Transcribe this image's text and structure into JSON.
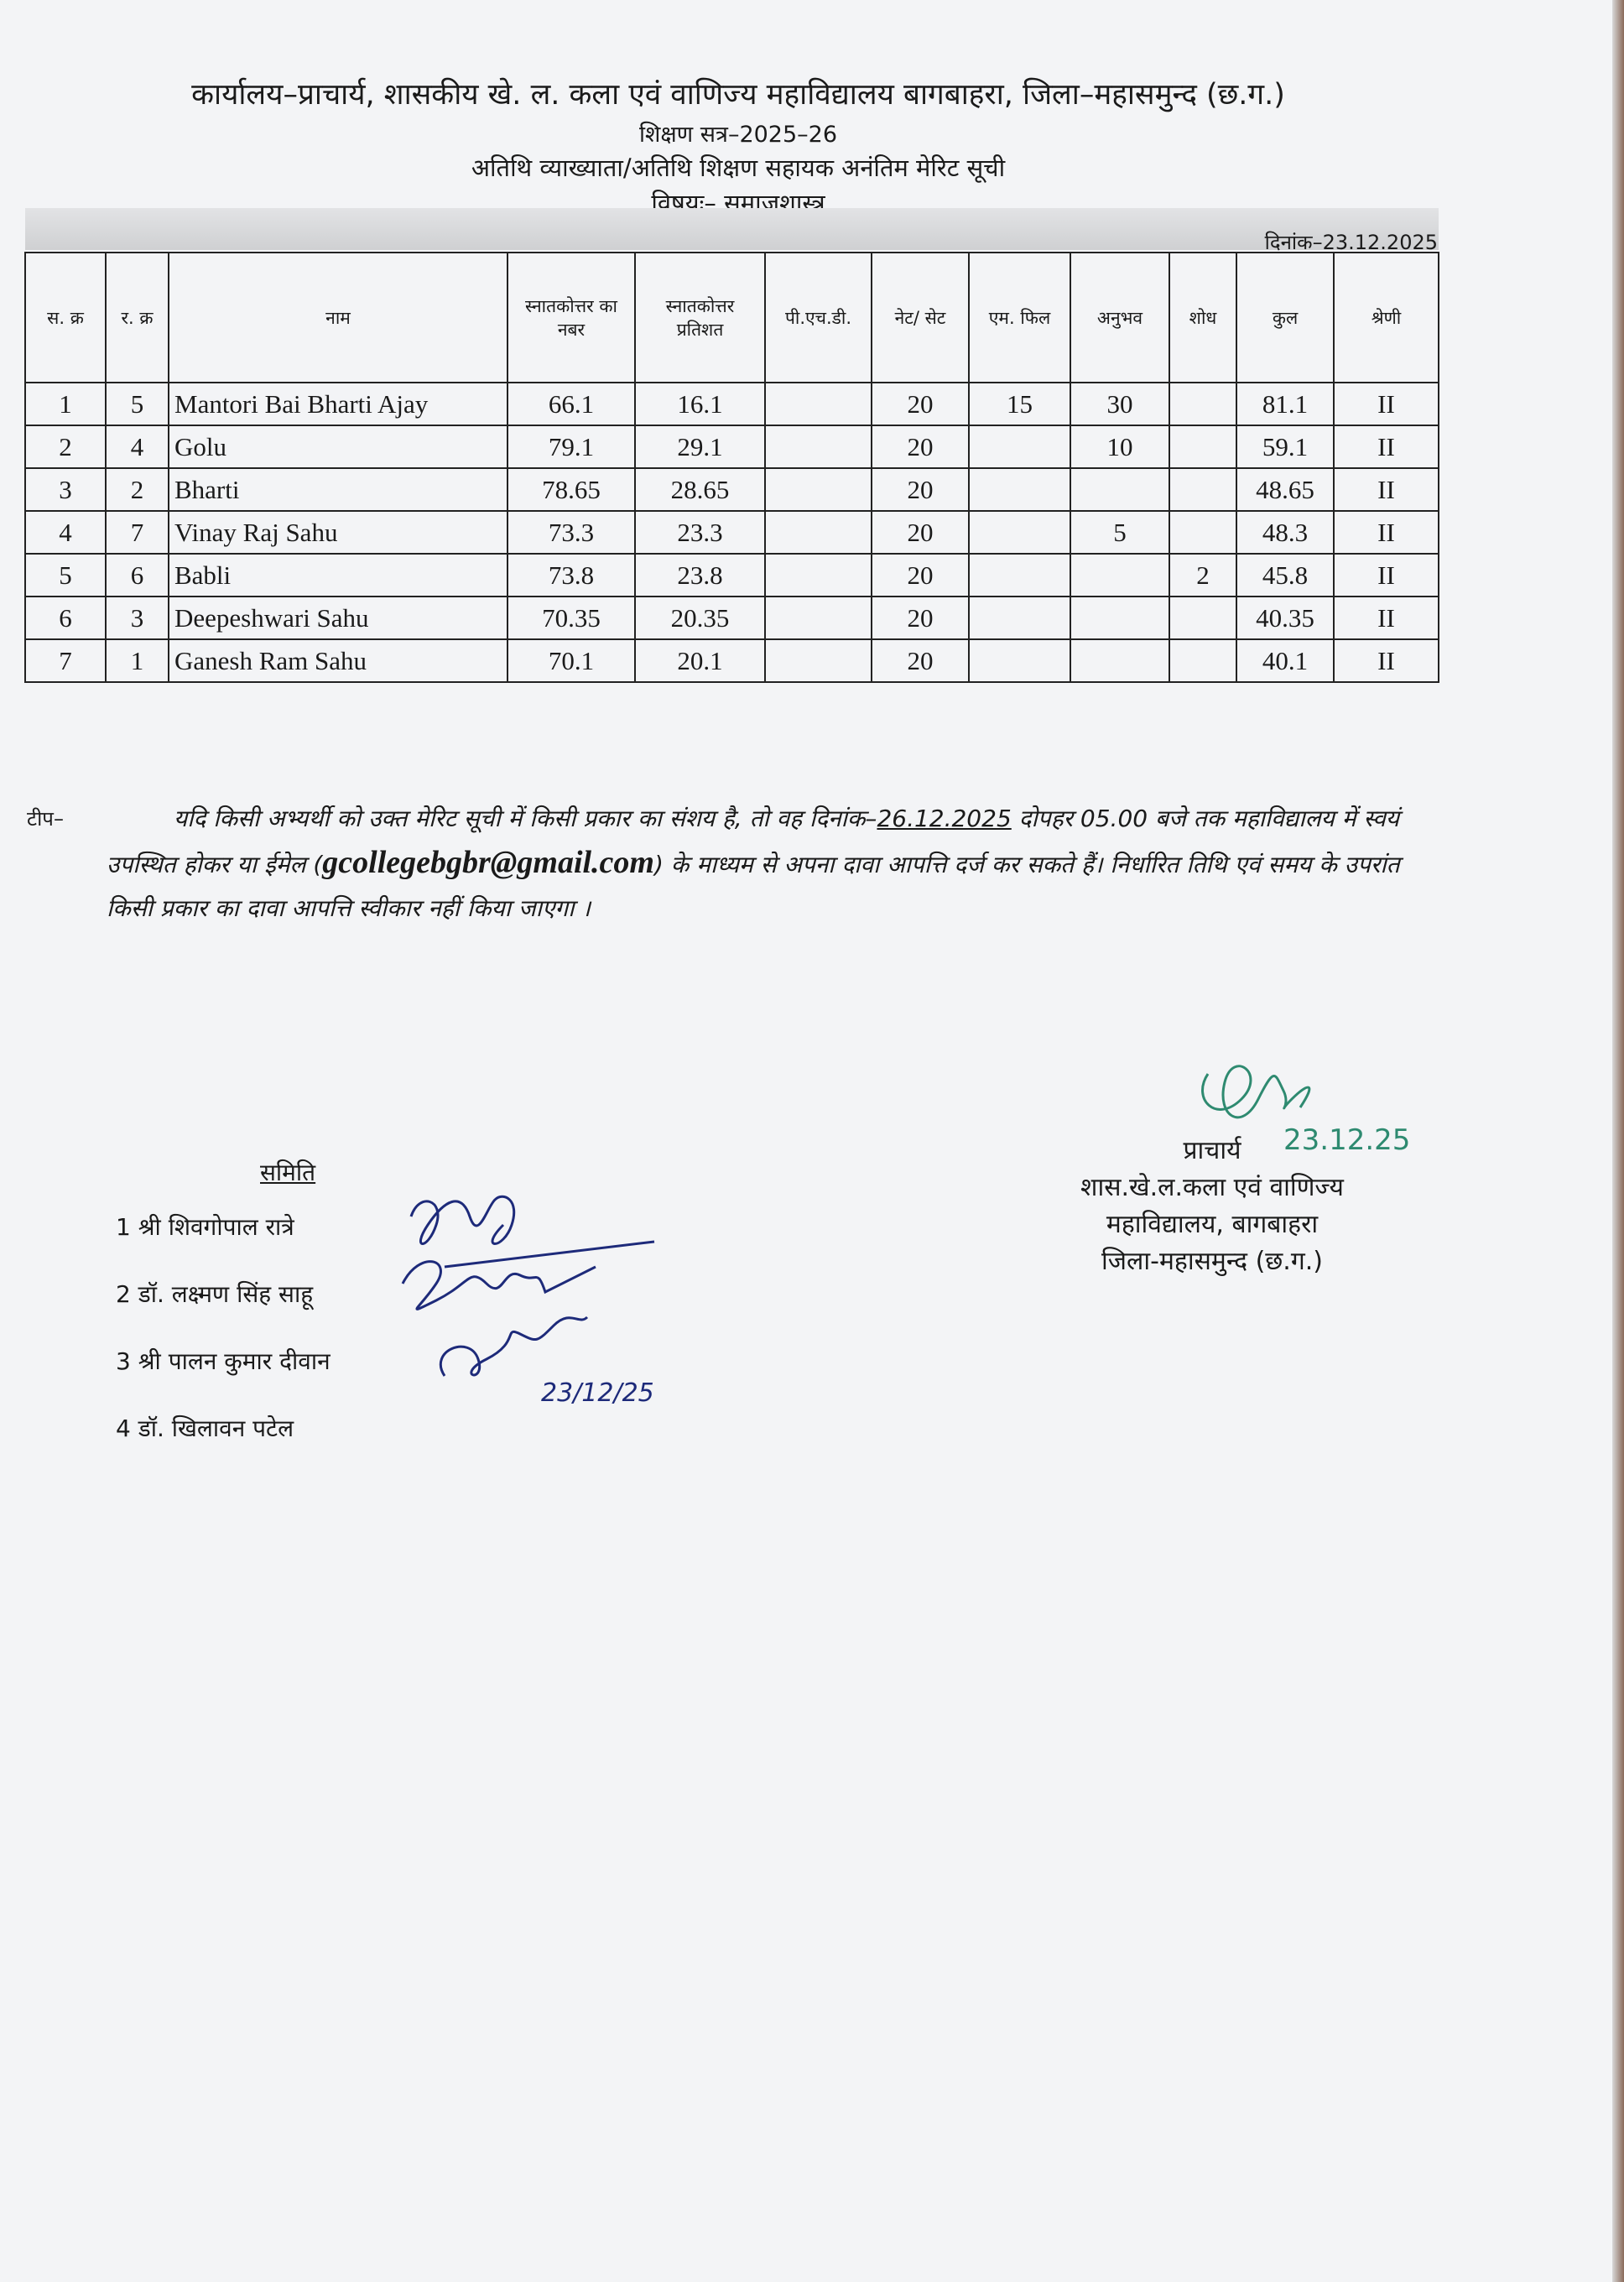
{
  "header": {
    "office": "कार्यालय–प्राचार्य, शासकीय खे. ल. कला एवं वाणिज्य महाविद्यालय बागबाहरा, जिला–महासमुन्द (छ.ग.)",
    "session": "शिक्षण सत्र–2025–26",
    "title": "अतिथि व्याख्याता/अतिथि शिक्षण सहायक अनंतिम मेरिट सूची",
    "subject": "विषयः– समाजशास्त्र",
    "date": "दिनांक–23.12.2025"
  },
  "table": {
    "columns": [
      "स. क्र",
      "र. क्र",
      "नाम",
      "स्नातकोत्तर का नबर",
      "स्नातकोत्तर प्रतिशत",
      "पी.एच.डी.",
      "नेट/ सेट",
      "एम. फिल",
      "अनुभव",
      "शोध",
      "कुल",
      "श्रेणी"
    ],
    "rows": [
      [
        "1",
        "5",
        "Mantori Bai Bharti Ajay",
        "66.1",
        "16.1",
        "",
        "20",
        "15",
        "30",
        "",
        "81.1",
        "II"
      ],
      [
        "2",
        "4",
        "Golu",
        "79.1",
        "29.1",
        "",
        "20",
        "",
        "10",
        "",
        "59.1",
        "II"
      ],
      [
        "3",
        "2",
        "Bharti",
        "78.65",
        "28.65",
        "",
        "20",
        "",
        "",
        "",
        "48.65",
        "II"
      ],
      [
        "4",
        "7",
        "Vinay Raj Sahu",
        "73.3",
        "23.3",
        "",
        "20",
        "",
        "5",
        "",
        "48.3",
        "II"
      ],
      [
        "5",
        "6",
        "Babli",
        "73.8",
        "23.8",
        "",
        "20",
        "",
        "",
        "2",
        "45.8",
        "II"
      ],
      [
        "6",
        "3",
        "Deepeshwari Sahu",
        "70.35",
        "20.35",
        "",
        "20",
        "",
        "",
        "",
        "40.35",
        "II"
      ],
      [
        "7",
        "1",
        "Ganesh Ram Sahu",
        "70.1",
        "20.1",
        "",
        "20",
        "",
        "",
        "",
        "40.1",
        "II"
      ]
    ]
  },
  "note": {
    "label": "टीप–",
    "text1": "यदि किसी अभ्यर्थी को उक्त मेरिट सूची में किसी प्रकार का संशय है, तो वह दिनांक–",
    "deadline": "26.12.2025",
    "text2": " दोपहर 05.00 बजे तक महाविद्यालय में स्वयं उपस्थित होकर या ईमेल (",
    "email": "gcollegebgbr@gmail.com",
    "text3": ") के माध्यम से अपना दावा आपत्ति दर्ज कर सकते हैं। निर्धारित तिथि एवं समय के उपरांत किसी प्रकार का दावा आपत्ति स्वीकार नहीं किया जाएगा ।"
  },
  "committee": {
    "title": "समिति",
    "members": [
      "1   श्री शिवगोपाल रात्रे",
      "2   डॉ. लक्ष्मण सिंह साहू",
      "3   श्री पालन कुमार दीवान",
      "4   डॉ. खिलावन पटेल"
    ],
    "sign_date": "23/12/25"
  },
  "principal": {
    "title": "प्राचार्य",
    "line1": "शास.खे.ल.कला एवं वाणिज्य",
    "line2": "महाविद्यालय, बागबाहरा",
    "line3": "जिला-महासमुन्द (छ.ग.)",
    "sign_date": "23.12.25"
  }
}
